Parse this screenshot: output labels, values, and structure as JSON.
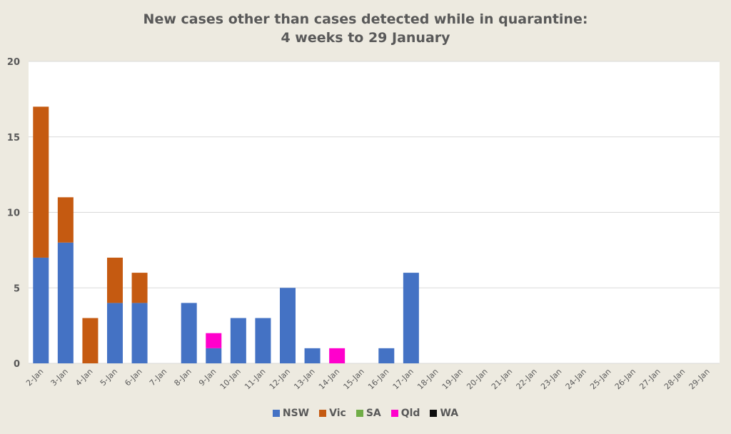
{
  "chart_data": {
    "type": "bar",
    "stacked": true,
    "title": "New cases other than cases detected while in quarantine:",
    "subtitle": "4 weeks to 29 January",
    "xlabel": "",
    "ylabel": "",
    "ylim": [
      0,
      20
    ],
    "yticks": [
      "0",
      "5",
      "10",
      "15",
      "20"
    ],
    "grid": true,
    "legend": "bottom",
    "categories": [
      "2-Jan",
      "3-Jan",
      "4-Jan",
      "5-Jan",
      "6-Jan",
      "7-Jan",
      "8-Jan",
      "9-Jan",
      "10-Jan",
      "11-Jan",
      "12-Jan",
      "13-Jan",
      "14-Jan",
      "15-Jan",
      "16-Jan",
      "17-Jan",
      "18-Jan",
      "19-Jan",
      "20-Jan",
      "21-Jan",
      "22-Jan",
      "23-Jan",
      "24-Jan",
      "25-Jan",
      "26-Jan",
      "27-Jan",
      "28-Jan",
      "29-Jan"
    ],
    "series": [
      {
        "name": "NSW",
        "color": "#4472c4",
        "values": [
          7,
          8,
          0,
          4,
          4,
          0,
          4,
          1,
          3,
          3,
          5,
          1,
          0,
          0,
          1,
          6,
          0,
          0,
          0,
          0,
          0,
          0,
          0,
          0,
          0,
          0,
          0,
          0
        ]
      },
      {
        "name": "Vic",
        "color": "#c55a11",
        "values": [
          10,
          3,
          3,
          3,
          2,
          0,
          0,
          0,
          0,
          0,
          0,
          0,
          0,
          0,
          0,
          0,
          0,
          0,
          0,
          0,
          0,
          0,
          0,
          0,
          0,
          0,
          0,
          0
        ]
      },
      {
        "name": "SA",
        "color": "#70ad47",
        "values": [
          0,
          0,
          0,
          0,
          0,
          0,
          0,
          0,
          0,
          0,
          0,
          0,
          0,
          0,
          0,
          0,
          0,
          0,
          0,
          0,
          0,
          0,
          0,
          0,
          0,
          0,
          0,
          0
        ]
      },
      {
        "name": "Qld",
        "color": "#ff00cc",
        "values": [
          0,
          0,
          0,
          0,
          0,
          0,
          0,
          1,
          0,
          0,
          0,
          0,
          1,
          0,
          0,
          0,
          0,
          0,
          0,
          0,
          0,
          0,
          0,
          0,
          0,
          0,
          0,
          0
        ]
      },
      {
        "name": "WA",
        "color": "#0d0d0d",
        "values": [
          0,
          0,
          0,
          0,
          0,
          0,
          0,
          0,
          0,
          0,
          0,
          0,
          0,
          0,
          0,
          0,
          0,
          0,
          0,
          0,
          0,
          0,
          0,
          0,
          0,
          0,
          0,
          0
        ]
      }
    ]
  }
}
